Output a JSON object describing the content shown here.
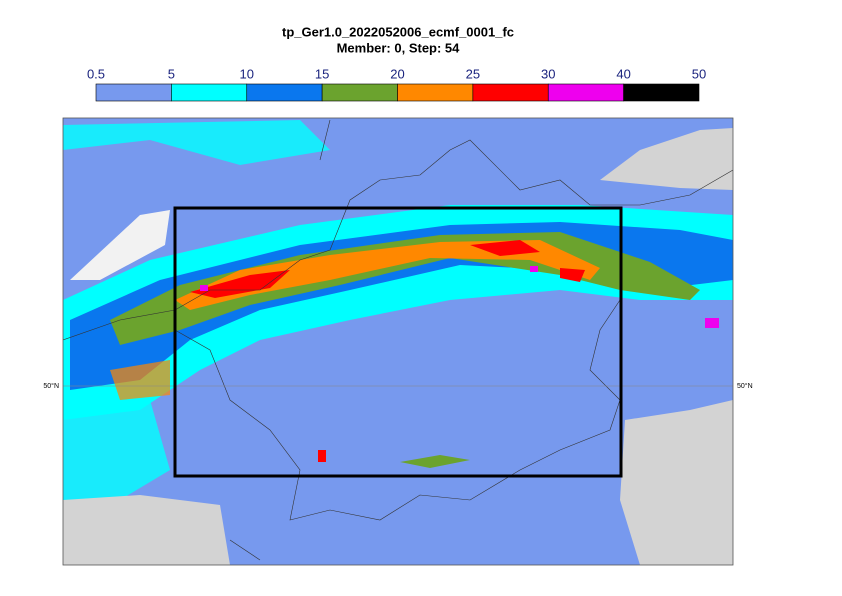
{
  "title": "tp_Ger1.0_2022052006_ecmf_0001_fc",
  "subtitle": "Member: 0, Step: 54",
  "colorbar": {
    "ticks": [
      0.5,
      5,
      10,
      15,
      20,
      25,
      30,
      40,
      50
    ],
    "colors": [
      "#7799ee",
      "#00ffff",
      "#0a77ee",
      "#6ba32e",
      "#ff8800",
      "#ff0000",
      "#ee00ee",
      "#000000"
    ]
  },
  "map": {
    "lat_label_left": "50°N",
    "lat_label_right": "50°N"
  }
}
